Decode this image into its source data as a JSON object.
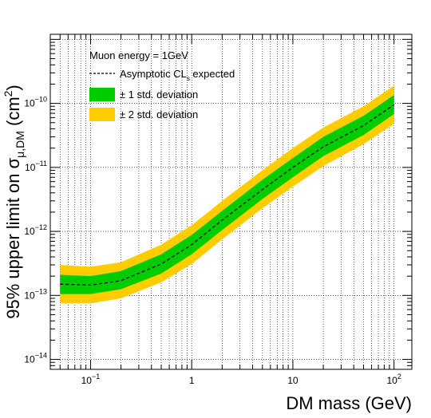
{
  "chart_data": {
    "type": "area",
    "xscale": "log",
    "yscale": "log",
    "xlim": [
      0.04,
      150
    ],
    "ylim": [
      7e-15,
      1.2e-09
    ],
    "grid": true,
    "xlabel": "DM mass (GeV)",
    "ylabel_main": "95% upper limit on σ",
    "ylabel_sub": "μ,DM",
    "ylabel_unit_open": " (cm",
    "ylabel_unit_sup": "2",
    "ylabel_unit_close": ")",
    "xticks": [
      {
        "value": 0.1,
        "base": "10",
        "exp": "−1"
      },
      {
        "value": 1,
        "base": "1",
        "exp": ""
      },
      {
        "value": 10,
        "base": "10",
        "exp": ""
      },
      {
        "value": 100,
        "base": "10",
        "exp": "2"
      }
    ],
    "yticks": [
      {
        "value": 1e-14,
        "base": "10",
        "exp": "−14"
      },
      {
        "value": 1e-13,
        "base": "10",
        "exp": "−13"
      },
      {
        "value": 1e-12,
        "base": "10",
        "exp": "−12"
      },
      {
        "value": 1e-11,
        "base": "10",
        "exp": "−11"
      },
      {
        "value": 1e-10,
        "base": "10",
        "exp": "−10"
      }
    ],
    "legend": {
      "header": "Muon energy = 1GeV",
      "expected_label": "Asymptotic CL",
      "expected_sub": "s",
      "expected_suffix": " expected",
      "band1_label": "± 1 std. deviation",
      "band2_label": "± 2 std. deviation",
      "placement": "top-left"
    },
    "colors": {
      "band1": "#00cc00",
      "band2": "#ffcc00",
      "expected": "#000000"
    },
    "x": [
      0.05,
      0.1,
      0.2,
      0.5,
      1,
      2,
      5,
      10,
      20,
      50,
      100
    ],
    "expected": [
      1.5e-13,
      1.45e-13,
      1.7e-13,
      3.1e-13,
      6.2e-13,
      1.5e-12,
      4.5e-12,
      1e-11,
      2.1e-11,
      4.5e-11,
      9.5e-11
    ],
    "band1_low": [
      1.05e-13,
      1.05e-13,
      1.25e-13,
      2.2e-13,
      4.4e-13,
      1.05e-12,
      3.2e-12,
      7e-12,
      1.5e-11,
      3.2e-11,
      6.8e-11
    ],
    "band1_high": [
      2.1e-13,
      2e-13,
      2.4e-13,
      4.4e-13,
      8.8e-13,
      2.1e-12,
      6.4e-12,
      1.4e-11,
      3e-11,
      6.4e-11,
      1.35e-10
    ],
    "band2_low": [
      7.5e-14,
      7.5e-14,
      9e-14,
      1.6e-13,
      3.1e-13,
      7.5e-13,
      2.3e-12,
      5e-12,
      1.05e-11,
      2.3e-11,
      4.8e-11
    ],
    "band2_high": [
      3e-13,
      2.8e-13,
      3.3e-13,
      6.2e-13,
      1.25e-12,
      3e-12,
      9e-12,
      2e-11,
      4.2e-11,
      9e-11,
      1.9e-10
    ]
  }
}
